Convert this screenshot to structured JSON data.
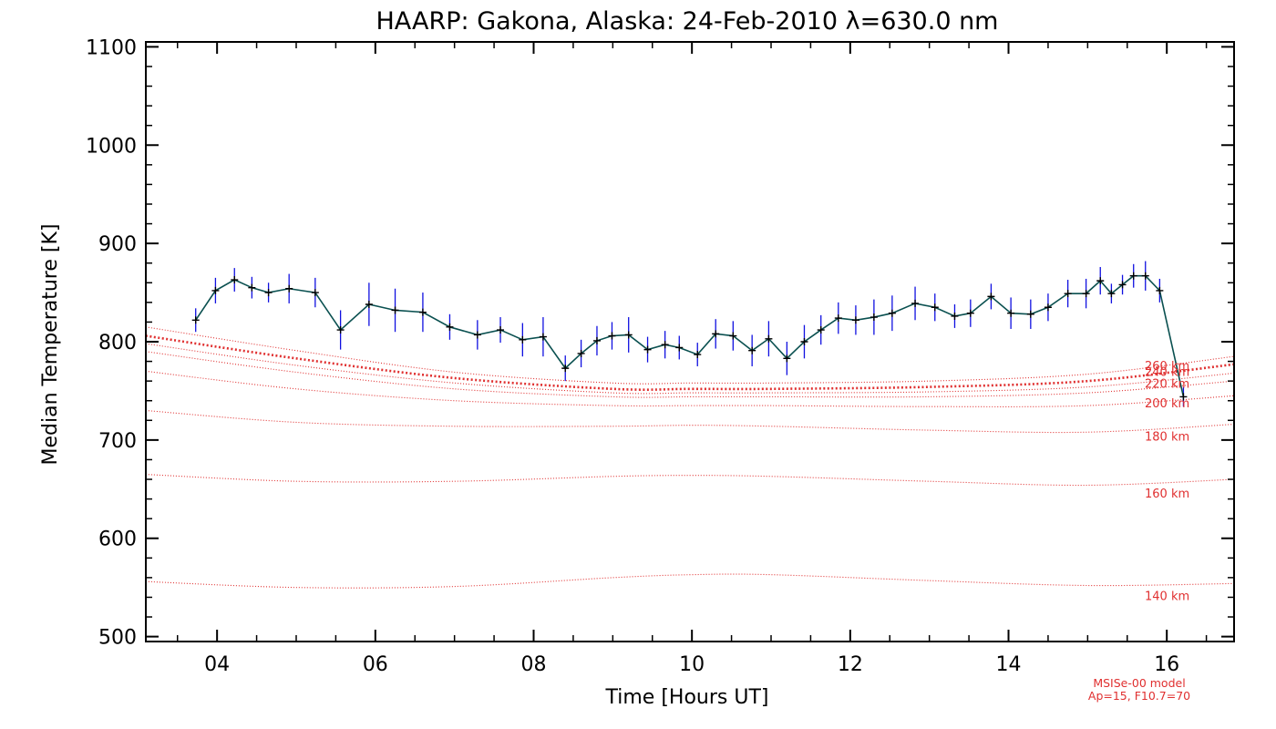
{
  "chart_data": {
    "type": "line",
    "title": "HAARP: Gakona,  Alaska: 24-Feb-2010 λ=630.0 nm",
    "xlabel": "Time [Hours UT]",
    "ylabel": "Median Temperature [K]",
    "xlim": [
      3.1,
      16.85
    ],
    "ylim": [
      495,
      1105
    ],
    "xticks": [
      {
        "value": 4,
        "label": "04"
      },
      {
        "value": 6,
        "label": "06"
      },
      {
        "value": 8,
        "label": "08"
      },
      {
        "value": 10,
        "label": "10"
      },
      {
        "value": 12,
        "label": "12"
      },
      {
        "value": 14,
        "label": "14"
      },
      {
        "value": 16,
        "label": "16"
      }
    ],
    "yticks": [
      {
        "value": 500,
        "label": "500"
      },
      {
        "value": 600,
        "label": "600"
      },
      {
        "value": 700,
        "label": "700"
      },
      {
        "value": 800,
        "label": "800"
      },
      {
        "value": 900,
        "label": "900"
      },
      {
        "value": 1000,
        "label": "1000"
      },
      {
        "value": 1100,
        "label": "1100"
      }
    ],
    "measured_series": {
      "line_color": "#0a5050",
      "marker_color": "#000000",
      "errorbar_color": "#1010e0",
      "x": [
        3.73,
        3.98,
        4.22,
        4.44,
        4.65,
        4.91,
        5.24,
        5.56,
        5.92,
        6.25,
        6.6,
        6.94,
        7.29,
        7.58,
        7.86,
        8.12,
        8.4,
        8.6,
        8.8,
        8.99,
        9.2,
        9.44,
        9.66,
        9.84,
        10.07,
        10.3,
        10.52,
        10.76,
        10.97,
        11.2,
        11.42,
        11.63,
        11.85,
        12.07,
        12.3,
        12.53,
        12.82,
        13.07,
        13.32,
        13.52,
        13.78,
        14.03,
        14.28,
        14.5,
        14.75,
        14.98,
        15.16,
        15.3,
        15.44,
        15.58,
        15.73,
        15.91,
        16.21
      ],
      "y": [
        822,
        852,
        863,
        855,
        850,
        854,
        850,
        812,
        838,
        832,
        830,
        815,
        807,
        812,
        802,
        805,
        773,
        788,
        801,
        806,
        807,
        792,
        797,
        794,
        787,
        808,
        806,
        791,
        803,
        783,
        800,
        812,
        824,
        822,
        825,
        829,
        839,
        835,
        826,
        829,
        846,
        829,
        828,
        835,
        849,
        849,
        862,
        849,
        858,
        867,
        867,
        852,
        744
      ],
      "err": [
        12,
        13,
        12,
        11,
        10,
        15,
        15,
        20,
        22,
        22,
        20,
        13,
        15,
        13,
        17,
        20,
        13,
        14,
        15,
        14,
        18,
        13,
        14,
        12,
        12,
        15,
        15,
        16,
        18,
        17,
        17,
        15,
        16,
        15,
        18,
        18,
        17,
        14,
        12,
        14,
        13,
        16,
        15,
        14,
        14,
        15,
        14,
        10,
        10,
        12,
        15,
        12,
        10
      ]
    },
    "model_series": [
      {
        "name": "140 km",
        "line_color": "#e03030",
        "x": [
          3.1,
          5,
          7,
          9,
          10,
          11,
          13,
          15,
          16.85
        ],
        "y": [
          556,
          550,
          551,
          560,
          563,
          563,
          557,
          552,
          554
        ]
      },
      {
        "name": "160 km",
        "line_color": "#e03030",
        "x": [
          3.1,
          5,
          7,
          9,
          10,
          11,
          13,
          15,
          16.85
        ],
        "y": [
          665,
          658,
          658,
          663,
          664,
          663,
          658,
          654,
          660
        ]
      },
      {
        "name": "180 km",
        "line_color": "#e03030",
        "x": [
          3.1,
          5,
          7,
          9,
          10,
          11,
          13,
          15,
          16.85
        ],
        "y": [
          730,
          718,
          714,
          714,
          715,
          714,
          710,
          708,
          716
        ]
      },
      {
        "name": "200 km",
        "line_color": "#e03030",
        "x": [
          3.1,
          5,
          7,
          9,
          10,
          11,
          13,
          15,
          16.85
        ],
        "y": [
          770,
          752,
          740,
          735,
          735,
          735,
          734,
          735,
          745
        ]
      },
      {
        "name": "220 km",
        "line_color": "#e03030",
        "x": [
          3.1,
          5,
          7,
          9,
          10,
          11,
          13,
          15,
          16.85
        ],
        "y": [
          790,
          769,
          752,
          744,
          744,
          744,
          744,
          748,
          760
        ]
      },
      {
        "name": "240 km",
        "line_color": "#e03030",
        "x": [
          3.1,
          5,
          7,
          9,
          10,
          11,
          13,
          15,
          16.85
        ],
        "y": [
          798,
          776,
          758,
          748,
          748,
          748,
          749,
          754,
          768
        ]
      },
      {
        "name": "250 km",
        "line_color": "#e03030",
        "x": [
          3.1,
          5,
          7,
          9,
          10,
          11,
          13,
          15,
          16.85
        ],
        "y": [
          806,
          783,
          763,
          752,
          752,
          752,
          754,
          760,
          777
        ],
        "emphasized": true
      },
      {
        "name": "260 km",
        "line_color": "#e03030",
        "x": [
          3.1,
          5,
          7,
          9,
          10,
          11,
          13,
          15,
          16.85
        ],
        "y": [
          815,
          791,
          769,
          758,
          758,
          758,
          760,
          767,
          785
        ]
      }
    ],
    "model_labels": [
      {
        "text": "260 km",
        "y": 776
      },
      {
        "text": "240 km",
        "y": 770
      },
      {
        "text": "220 km",
        "y": 758
      },
      {
        "text": "200 km",
        "y": 738
      },
      {
        "text": "180 km",
        "y": 704
      },
      {
        "text": "160 km",
        "y": 646
      },
      {
        "text": "140 km",
        "y": 542
      }
    ],
    "model_note": [
      "MSISe-00 model",
      "Ap=15, F10.7=70"
    ],
    "grid": false,
    "legend": "none"
  }
}
